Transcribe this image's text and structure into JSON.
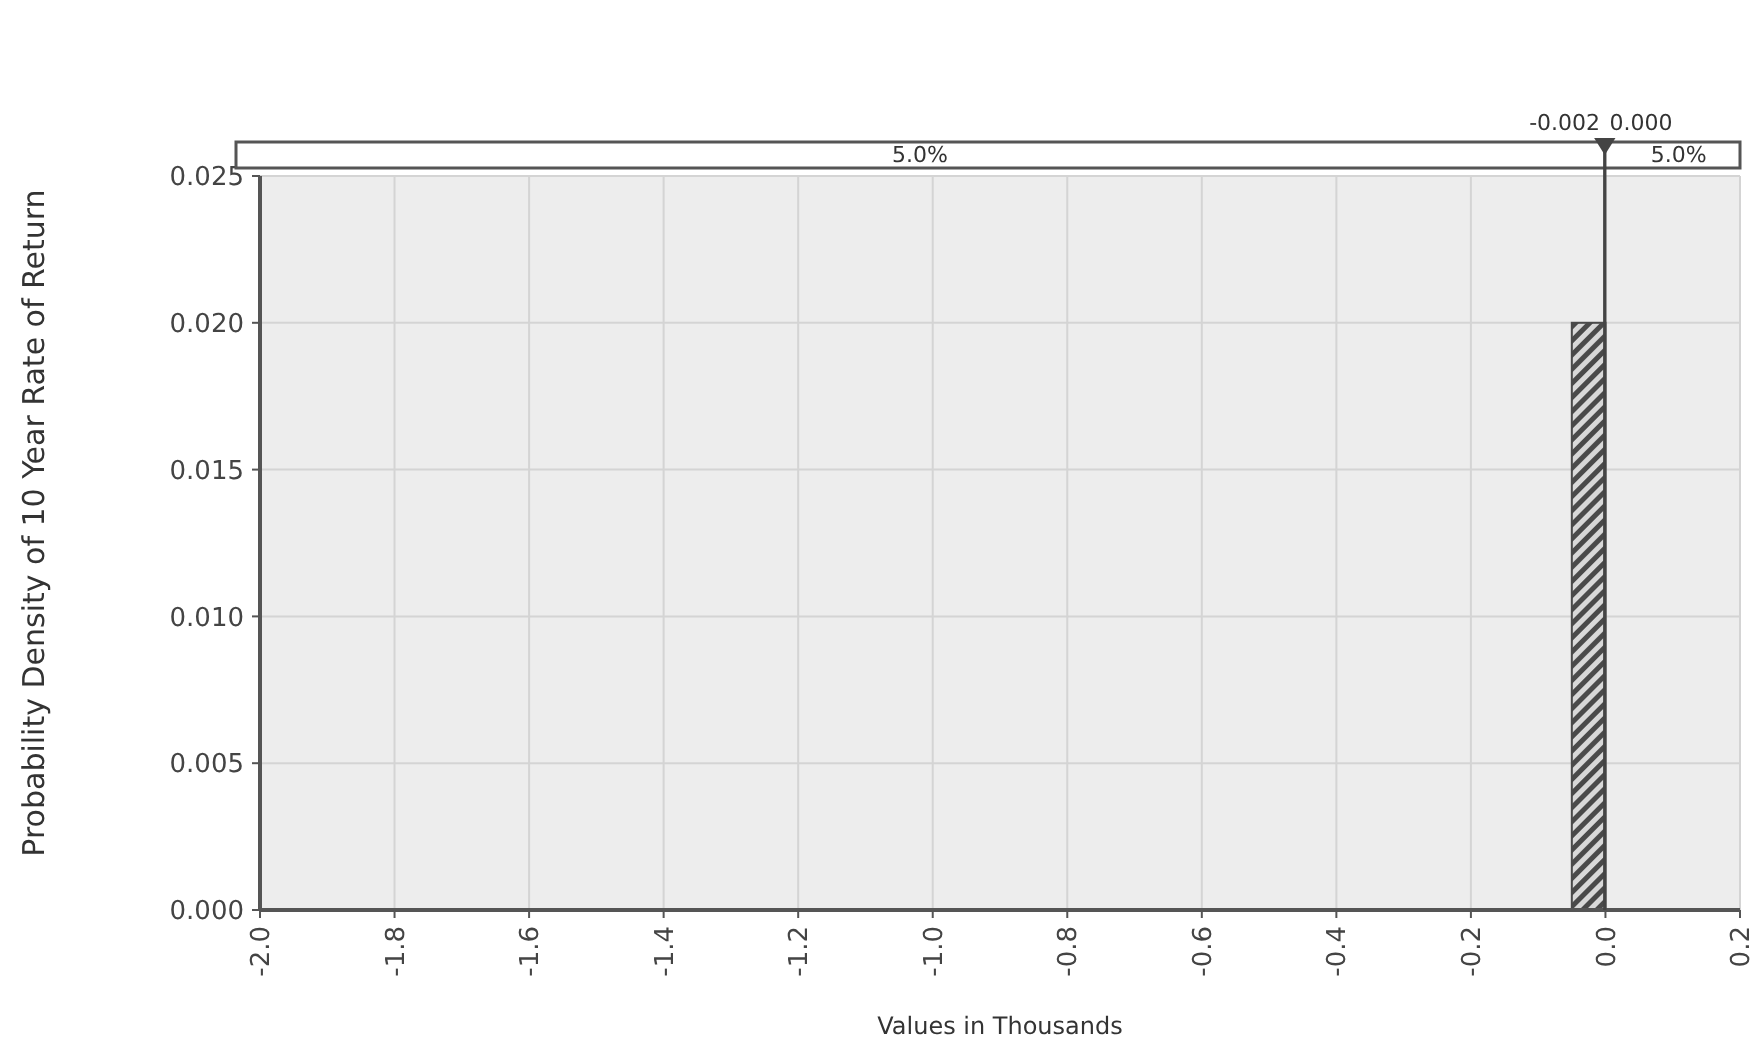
{
  "chart_data": {
    "type": "histogram",
    "xlabel": "Values in Thousands",
    "ylabel": "Probability Density of 10 Year Rate of Return",
    "bins": [
      -0.05,
      0
    ],
    "values": [
      0.02
    ],
    "color": "#4a4a4a",
    "xlim": [
      -2.0,
      0.2
    ],
    "xticks": [
      {
        "value": -2.0,
        "label": "-2.0"
      },
      {
        "value": -1.8,
        "label": "-1.8"
      },
      {
        "value": -1.6,
        "label": "-1.6"
      },
      {
        "value": -1.4,
        "label": "-1.4"
      },
      {
        "value": -1.2,
        "label": "-1.2"
      },
      {
        "value": -1.0,
        "label": "-1.0"
      },
      {
        "value": -0.8,
        "label": "-0.8"
      },
      {
        "value": -0.6,
        "label": "-0.6"
      },
      {
        "value": -0.4,
        "label": "-0.4"
      },
      {
        "value": -0.2,
        "label": "-0.2"
      },
      {
        "value": 0,
        "label": "0.0"
      },
      {
        "value": 0.2,
        "label": "0.2"
      }
    ],
    "ylim": [
      0,
      0.025
    ],
    "yticks": [
      {
        "value": 0,
        "label": "0.000"
      },
      {
        "value": 0.005,
        "label": "0.005"
      },
      {
        "value": 0.01,
        "label": "0.010"
      },
      {
        "value": 0.015,
        "label": "0.015"
      },
      {
        "value": 0.02,
        "label": "0.020"
      },
      {
        "value": 0.025,
        "label": "0.025"
      }
    ],
    "grid": true,
    "ref_lines": [
      {
        "axis": "x",
        "value": -0.002,
        "label": "-0.002"
      },
      {
        "axis": "x",
        "value": 0,
        "label": "0.000"
      }
    ],
    "annotations": [
      "5.0%",
      "5.0%"
    ]
  }
}
